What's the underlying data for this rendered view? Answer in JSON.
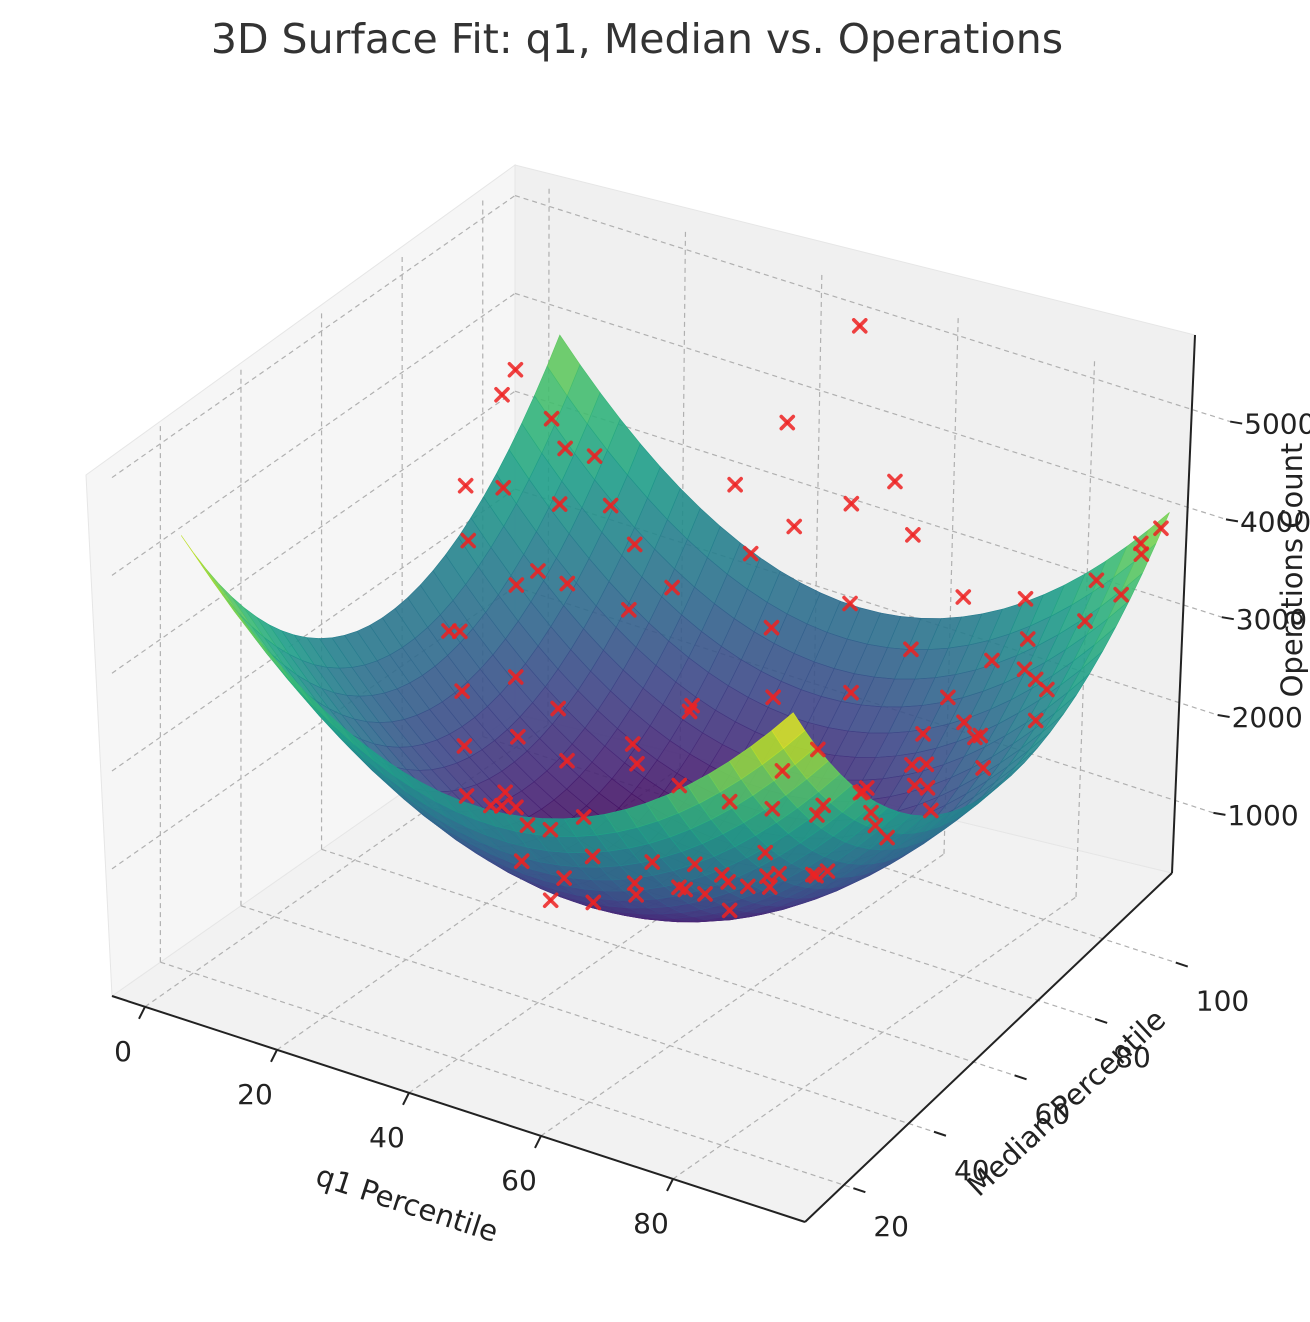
{
  "chart_data": {
    "type": "surface3d",
    "title": "3D Surface Fit: q1, Median vs. Operations",
    "xlabel": "q1 Percentile",
    "ylabel": "Median Percentile",
    "zlabel": "Operations Count",
    "x_ticks": [
      "0",
      "20",
      "40",
      "60",
      "80"
    ],
    "y_ticks": [
      "20",
      "40",
      "60",
      "80",
      "100"
    ],
    "z_ticks": [
      "1000",
      "2000",
      "3000",
      "4000",
      "5000"
    ],
    "xlim": [
      -5,
      100
    ],
    "ylim": [
      8,
      108
    ],
    "zlim": [
      -300,
      5200
    ],
    "grid": true,
    "colormap": "viridis",
    "surface_model": {
      "form": "z = c + a*(x - x0)^2 + b*(y - y0)^2",
      "c": 460,
      "a": 0.93,
      "x0": 48,
      "b": 0.88,
      "y0": 61,
      "x_range": [
        4,
        94
      ],
      "y_range": [
        10,
        104
      ]
    },
    "scatter_color": "#ee2222",
    "scatter_marker": "x",
    "points": [
      [
        4,
        93,
        3850
      ],
      [
        5,
        88,
        3760
      ],
      [
        7,
        97,
        3300
      ],
      [
        10,
        80,
        3150
      ],
      [
        12,
        92,
        3250
      ],
      [
        14,
        96,
        3100
      ],
      [
        16,
        84,
        3000
      ],
      [
        18,
        70,
        2620
      ],
      [
        20,
        90,
        2900
      ],
      [
        22,
        76,
        2550
      ],
      [
        14,
        60,
        2350
      ],
      [
        26,
        86,
        2750
      ],
      [
        30,
        78,
        2400
      ],
      [
        34,
        82,
        2600
      ],
      [
        36,
        94,
        3350
      ],
      [
        40,
        100,
        3900
      ],
      [
        48,
        104,
        4950
      ],
      [
        28,
        64,
        1750
      ],
      [
        33,
        58,
        1500
      ],
      [
        38,
        66,
        1550
      ],
      [
        44,
        70,
        1900
      ],
      [
        42,
        88,
        2950
      ],
      [
        46,
        92,
        3200
      ],
      [
        52,
        96,
        3450
      ],
      [
        56,
        100,
        3650
      ],
      [
        60,
        98,
        3250
      ],
      [
        50,
        80,
        2600
      ],
      [
        58,
        86,
        2850
      ],
      [
        54,
        74,
        2150
      ],
      [
        62,
        72,
        1850
      ],
      [
        66,
        88,
        2500
      ],
      [
        70,
        94,
        2950
      ],
      [
        74,
        84,
        2300
      ],
      [
        78,
        96,
        3050
      ],
      [
        82,
        90,
        2900
      ],
      [
        86,
        100,
        3300
      ],
      [
        90,
        104,
        3650
      ],
      [
        92,
        96,
        3400
      ],
      [
        94,
        102,
        3950
      ],
      [
        93,
        99,
        3750
      ],
      [
        88,
        94,
        3100
      ],
      [
        84,
        86,
        2750
      ],
      [
        80,
        78,
        2350
      ],
      [
        76,
        72,
        2000
      ],
      [
        72,
        66,
        1800
      ],
      [
        68,
        62,
        1600
      ],
      [
        64,
        56,
        1300
      ],
      [
        60,
        52,
        1100
      ],
      [
        56,
        48,
        1000
      ],
      [
        52,
        44,
        950
      ],
      [
        48,
        40,
        900
      ],
      [
        44,
        36,
        950
      ],
      [
        40,
        46,
        800
      ],
      [
        36,
        42,
        1000
      ],
      [
        32,
        50,
        1050
      ],
      [
        46,
        58,
        750
      ],
      [
        50,
        62,
        700
      ],
      [
        54,
        58,
        600
      ],
      [
        58,
        62,
        650
      ],
      [
        62,
        60,
        900
      ],
      [
        66,
        54,
        1050
      ],
      [
        70,
        58,
        1150
      ],
      [
        74,
        52,
        1400
      ],
      [
        78,
        48,
        1650
      ],
      [
        82,
        56,
        1850
      ],
      [
        86,
        60,
        2100
      ],
      [
        90,
        66,
        2450
      ],
      [
        94,
        72,
        2850
      ],
      [
        92,
        78,
        2950
      ],
      [
        88,
        82,
        2850
      ],
      [
        84,
        74,
        2400
      ],
      [
        80,
        66,
        2050
      ],
      [
        76,
        62,
        1800
      ],
      [
        72,
        46,
        1550
      ],
      [
        68,
        40,
        1550
      ],
      [
        64,
        36,
        1500
      ],
      [
        60,
        30,
        1650
      ],
      [
        56,
        26,
        1950
      ],
      [
        52,
        22,
        2250
      ],
      [
        48,
        20,
        2450
      ],
      [
        44,
        24,
        2400
      ],
      [
        40,
        30,
        2000
      ],
      [
        36,
        34,
        1800
      ],
      [
        30,
        38,
        1650
      ],
      [
        26,
        44,
        1900
      ],
      [
        22,
        50,
        2200
      ],
      [
        18,
        56,
        2550
      ],
      [
        58,
        70,
        1600
      ],
      [
        62,
        80,
        2200
      ],
      [
        42,
        74,
        1800
      ],
      [
        38,
        54,
        1150
      ],
      [
        66,
        44,
        1100
      ],
      [
        70,
        70,
        1650
      ],
      [
        74,
        78,
        2100
      ],
      [
        78,
        88,
        2650
      ],
      [
        8,
        74,
        3300
      ],
      [
        12,
        68,
        3000
      ],
      [
        24,
        60,
        2100
      ],
      [
        28,
        54,
        1750
      ],
      [
        20,
        72,
        2750
      ],
      [
        86,
        46,
        2350
      ],
      [
        90,
        52,
        2650
      ],
      [
        94,
        58,
        3100
      ],
      [
        92,
        48,
        3050
      ],
      [
        88,
        40,
        2950
      ],
      [
        84,
        36,
        2800
      ],
      [
        80,
        30,
        2850
      ],
      [
        76,
        26,
        2950
      ],
      [
        72,
        20,
        3200
      ],
      [
        68,
        16,
        3450
      ]
    ]
  }
}
